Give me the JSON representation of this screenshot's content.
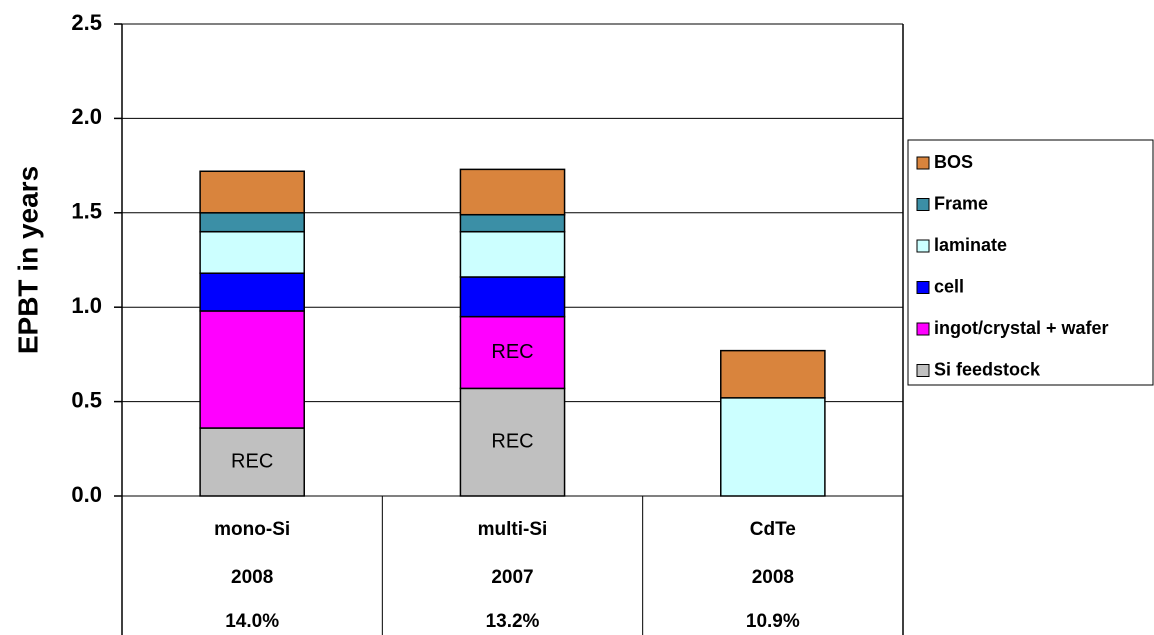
{
  "chart_data": {
    "type": "stacked_bar",
    "y_label": "EPBT in years",
    "categories": [
      "mono-Si",
      "multi-Si",
      "CdTe"
    ],
    "table_rows": [
      [
        "2008",
        "2007",
        "2008"
      ],
      [
        "14.0%",
        "13.2%",
        "10.9%"
      ]
    ],
    "series": [
      {
        "name": "Si feedstock",
        "color": "#c0c0c0",
        "values": [
          0.36,
          0.57,
          null
        ]
      },
      {
        "name": "ingot/crystal + wafer",
        "color": "#ff00ff",
        "values": [
          0.62,
          0.38,
          null
        ]
      },
      {
        "name": "cell",
        "color": "#0000ff",
        "values": [
          0.2,
          0.21,
          null
        ]
      },
      {
        "name": "laminate",
        "color": "#ccffff",
        "values": [
          0.22,
          0.24,
          0.52
        ]
      },
      {
        "name": "Frame",
        "color": "#3b8fa6",
        "values": [
          0.1,
          0.09,
          null
        ]
      },
      {
        "name": "BOS",
        "color": "#d9843d",
        "values": [
          0.22,
          0.24,
          0.25
        ]
      }
    ],
    "annotations": [
      {
        "text": "REC",
        "series": 0,
        "category": 0
      },
      {
        "text": "REC",
        "series": 0,
        "category": 1
      },
      {
        "text": "REC",
        "series": 1,
        "category": 1
      }
    ],
    "ylim": [
      0,
      2.5
    ],
    "yticks": [
      {
        "value": 0,
        "label": "0.0"
      },
      0.5,
      {
        "value": 1,
        "label": "1.0"
      },
      1.5,
      {
        "value": 2,
        "label": "2.0"
      },
      2.5
    ],
    "grid": true,
    "legend": "right"
  }
}
